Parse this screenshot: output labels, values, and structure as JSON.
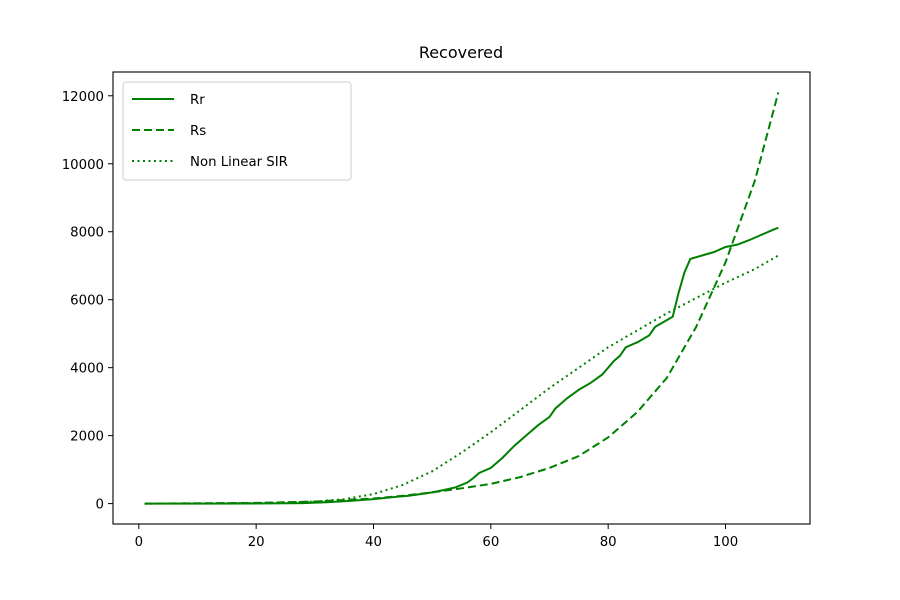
{
  "chart_data": {
    "type": "line",
    "title": "Recovered",
    "xlabel": "",
    "ylabel": "",
    "xlim": [
      -4.4,
      114.4
    ],
    "ylim": [
      -600,
      12700
    ],
    "xticks": [
      0,
      20,
      40,
      60,
      80,
      100
    ],
    "yticks": [
      0,
      2000,
      4000,
      6000,
      8000,
      10000,
      12000
    ],
    "grid": false,
    "legend_position": "upper-left",
    "color": "#008000",
    "series": [
      {
        "name": "Rr",
        "style": "solid",
        "points": [
          [
            1,
            0
          ],
          [
            10,
            0
          ],
          [
            20,
            5
          ],
          [
            28,
            15
          ],
          [
            32,
            40
          ],
          [
            36,
            80
          ],
          [
            40,
            130
          ],
          [
            42,
            170
          ],
          [
            44,
            200
          ],
          [
            46,
            230
          ],
          [
            48,
            280
          ],
          [
            50,
            330
          ],
          [
            52,
            400
          ],
          [
            54,
            480
          ],
          [
            56,
            620
          ],
          [
            57,
            750
          ],
          [
            58,
            900
          ],
          [
            60,
            1050
          ],
          [
            62,
            1350
          ],
          [
            64,
            1700
          ],
          [
            66,
            2000
          ],
          [
            68,
            2300
          ],
          [
            70,
            2550
          ],
          [
            71,
            2800
          ],
          [
            73,
            3100
          ],
          [
            75,
            3350
          ],
          [
            77,
            3550
          ],
          [
            79,
            3800
          ],
          [
            81,
            4200
          ],
          [
            82,
            4350
          ],
          [
            83,
            4600
          ],
          [
            85,
            4750
          ],
          [
            87,
            4950
          ],
          [
            88,
            5200
          ],
          [
            90,
            5400
          ],
          [
            91,
            5500
          ],
          [
            92,
            6200
          ],
          [
            93,
            6800
          ],
          [
            94,
            7200
          ],
          [
            96,
            7300
          ],
          [
            98,
            7400
          ],
          [
            100,
            7550
          ],
          [
            102,
            7620
          ],
          [
            104,
            7750
          ],
          [
            106,
            7900
          ],
          [
            108,
            8050
          ],
          [
            109,
            8120
          ]
        ]
      },
      {
        "name": "Rs",
        "style": "dashed",
        "points": [
          [
            1,
            0
          ],
          [
            20,
            20
          ],
          [
            30,
            60
          ],
          [
            40,
            150
          ],
          [
            45,
            230
          ],
          [
            50,
            330
          ],
          [
            55,
            450
          ],
          [
            60,
            580
          ],
          [
            65,
            780
          ],
          [
            70,
            1050
          ],
          [
            75,
            1400
          ],
          [
            80,
            1950
          ],
          [
            85,
            2700
          ],
          [
            90,
            3700
          ],
          [
            95,
            5200
          ],
          [
            100,
            7100
          ],
          [
            105,
            9500
          ],
          [
            109,
            12100
          ]
        ]
      },
      {
        "name": "Non Linear SIR",
        "style": "dotted",
        "points": [
          [
            1,
            0
          ],
          [
            20,
            15
          ],
          [
            30,
            60
          ],
          [
            35,
            130
          ],
          [
            40,
            280
          ],
          [
            45,
            550
          ],
          [
            50,
            950
          ],
          [
            55,
            1500
          ],
          [
            60,
            2100
          ],
          [
            65,
            2750
          ],
          [
            70,
            3400
          ],
          [
            75,
            4000
          ],
          [
            80,
            4600
          ],
          [
            85,
            5100
          ],
          [
            90,
            5600
          ],
          [
            95,
            6050
          ],
          [
            100,
            6500
          ],
          [
            105,
            6900
          ],
          [
            109,
            7300
          ]
        ]
      }
    ]
  }
}
